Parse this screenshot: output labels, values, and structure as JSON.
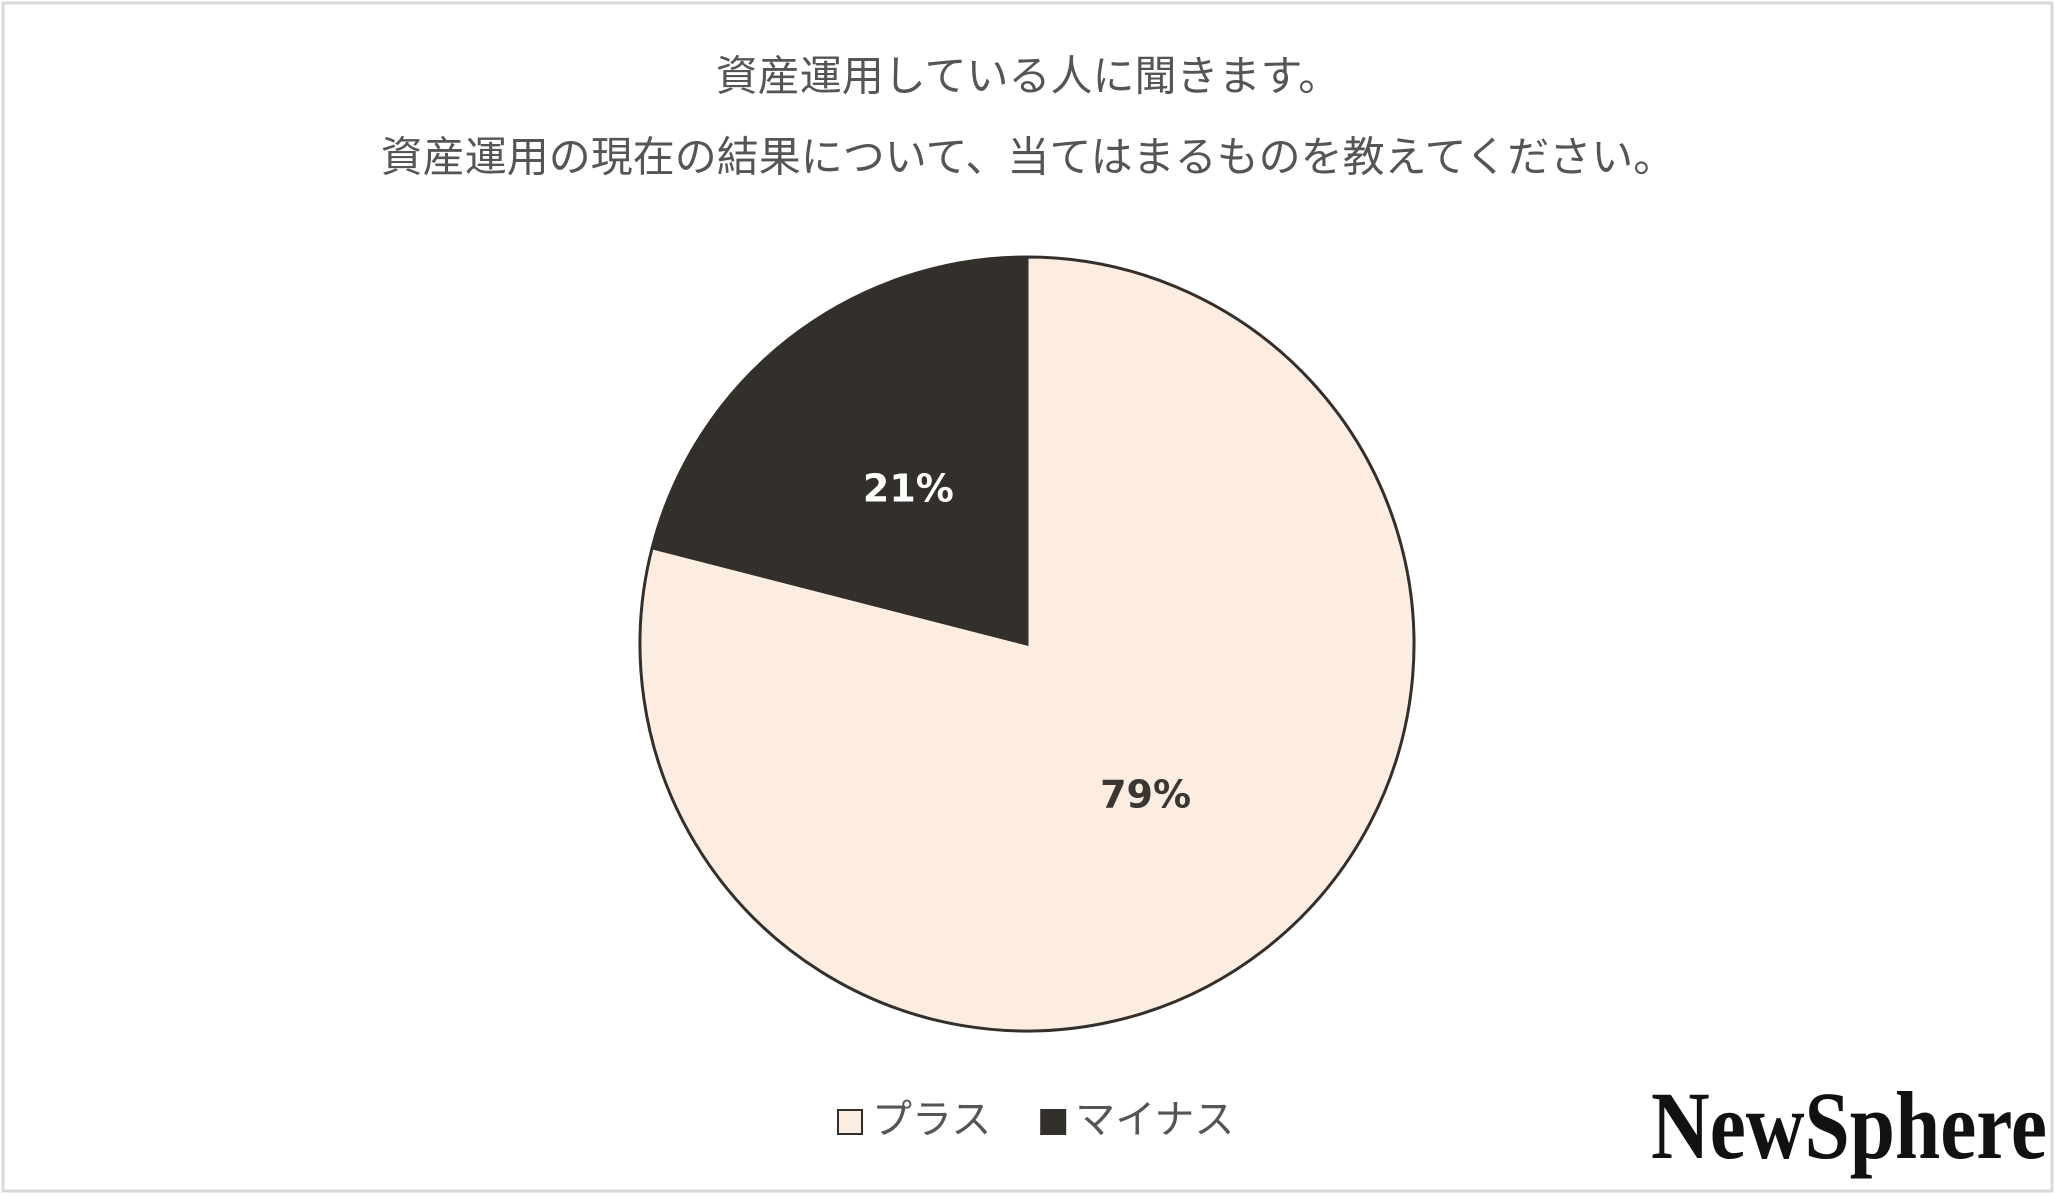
{
  "chart_data": {
    "type": "pie",
    "title": [
      "資産運用している人に聞きます。",
      "資産運用の現在の結果について、当てはまるものを教えてください。"
    ],
    "categories": [
      "プラス",
      "マイナス"
    ],
    "values": [
      79,
      21
    ],
    "value_labels": [
      "79%",
      "21%"
    ],
    "colors": [
      "#fdede0",
      "#33302b"
    ],
    "label_colors": [
      "#3a3632",
      "#ffffff"
    ],
    "legend": "bottom"
  },
  "logo": "NewSphere"
}
